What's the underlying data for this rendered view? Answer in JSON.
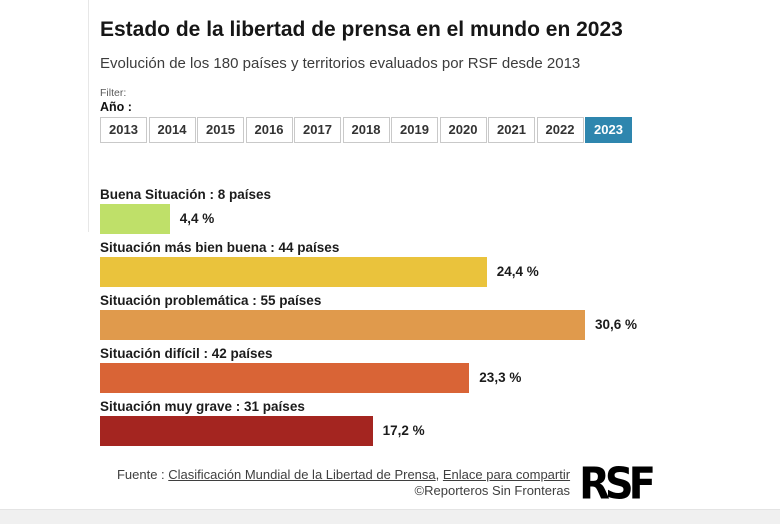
{
  "header": {
    "title": "Estado de la libertad de prensa en el mundo en 2023",
    "subtitle": "Evolución de los 180 países y territorios evaluados por RSF desde 2013"
  },
  "filter": {
    "label": "Filter:",
    "control_label": "Año :",
    "years": [
      "2013",
      "2014",
      "2015",
      "2016",
      "2017",
      "2018",
      "2019",
      "2020",
      "2021",
      "2022",
      "2023"
    ],
    "selected_year": "2023",
    "selected_tab_color": "#2e86ae"
  },
  "chart_data": {
    "type": "bar",
    "orientation": "horizontal",
    "title": "Estado de la libertad de prensa en el mundo en 2023",
    "unit": "%",
    "xlim": [
      0,
      31
    ],
    "grid": false,
    "legend": "none",
    "categories": [
      "Buena Situación : 8 países",
      "Situación más bien buena : 44 países",
      "Situación problemática : 55 países",
      "Situación difícil : 42 países",
      "Situación muy grave : 31 países"
    ],
    "country_counts": [
      8,
      44,
      55,
      42,
      31
    ],
    "values": [
      4.4,
      24.4,
      30.6,
      23.3,
      17.2
    ],
    "value_labels": [
      "4,4 %",
      "24,4 %",
      "30,6 %",
      "23,3 %",
      "17,2 %"
    ],
    "colors": [
      "#bfe069",
      "#eac33c",
      "#e09a4c",
      "#d96436",
      "#a42520"
    ]
  },
  "footer": {
    "source_prefix": "Fuente : ",
    "source_link": "Clasificación Mundial de la Libertad de Prensa",
    "separator": ", ",
    "share_link": "Enlace para compartir",
    "copyright": "©Reporteros Sin Fronteras",
    "logo_text": "RSF"
  }
}
